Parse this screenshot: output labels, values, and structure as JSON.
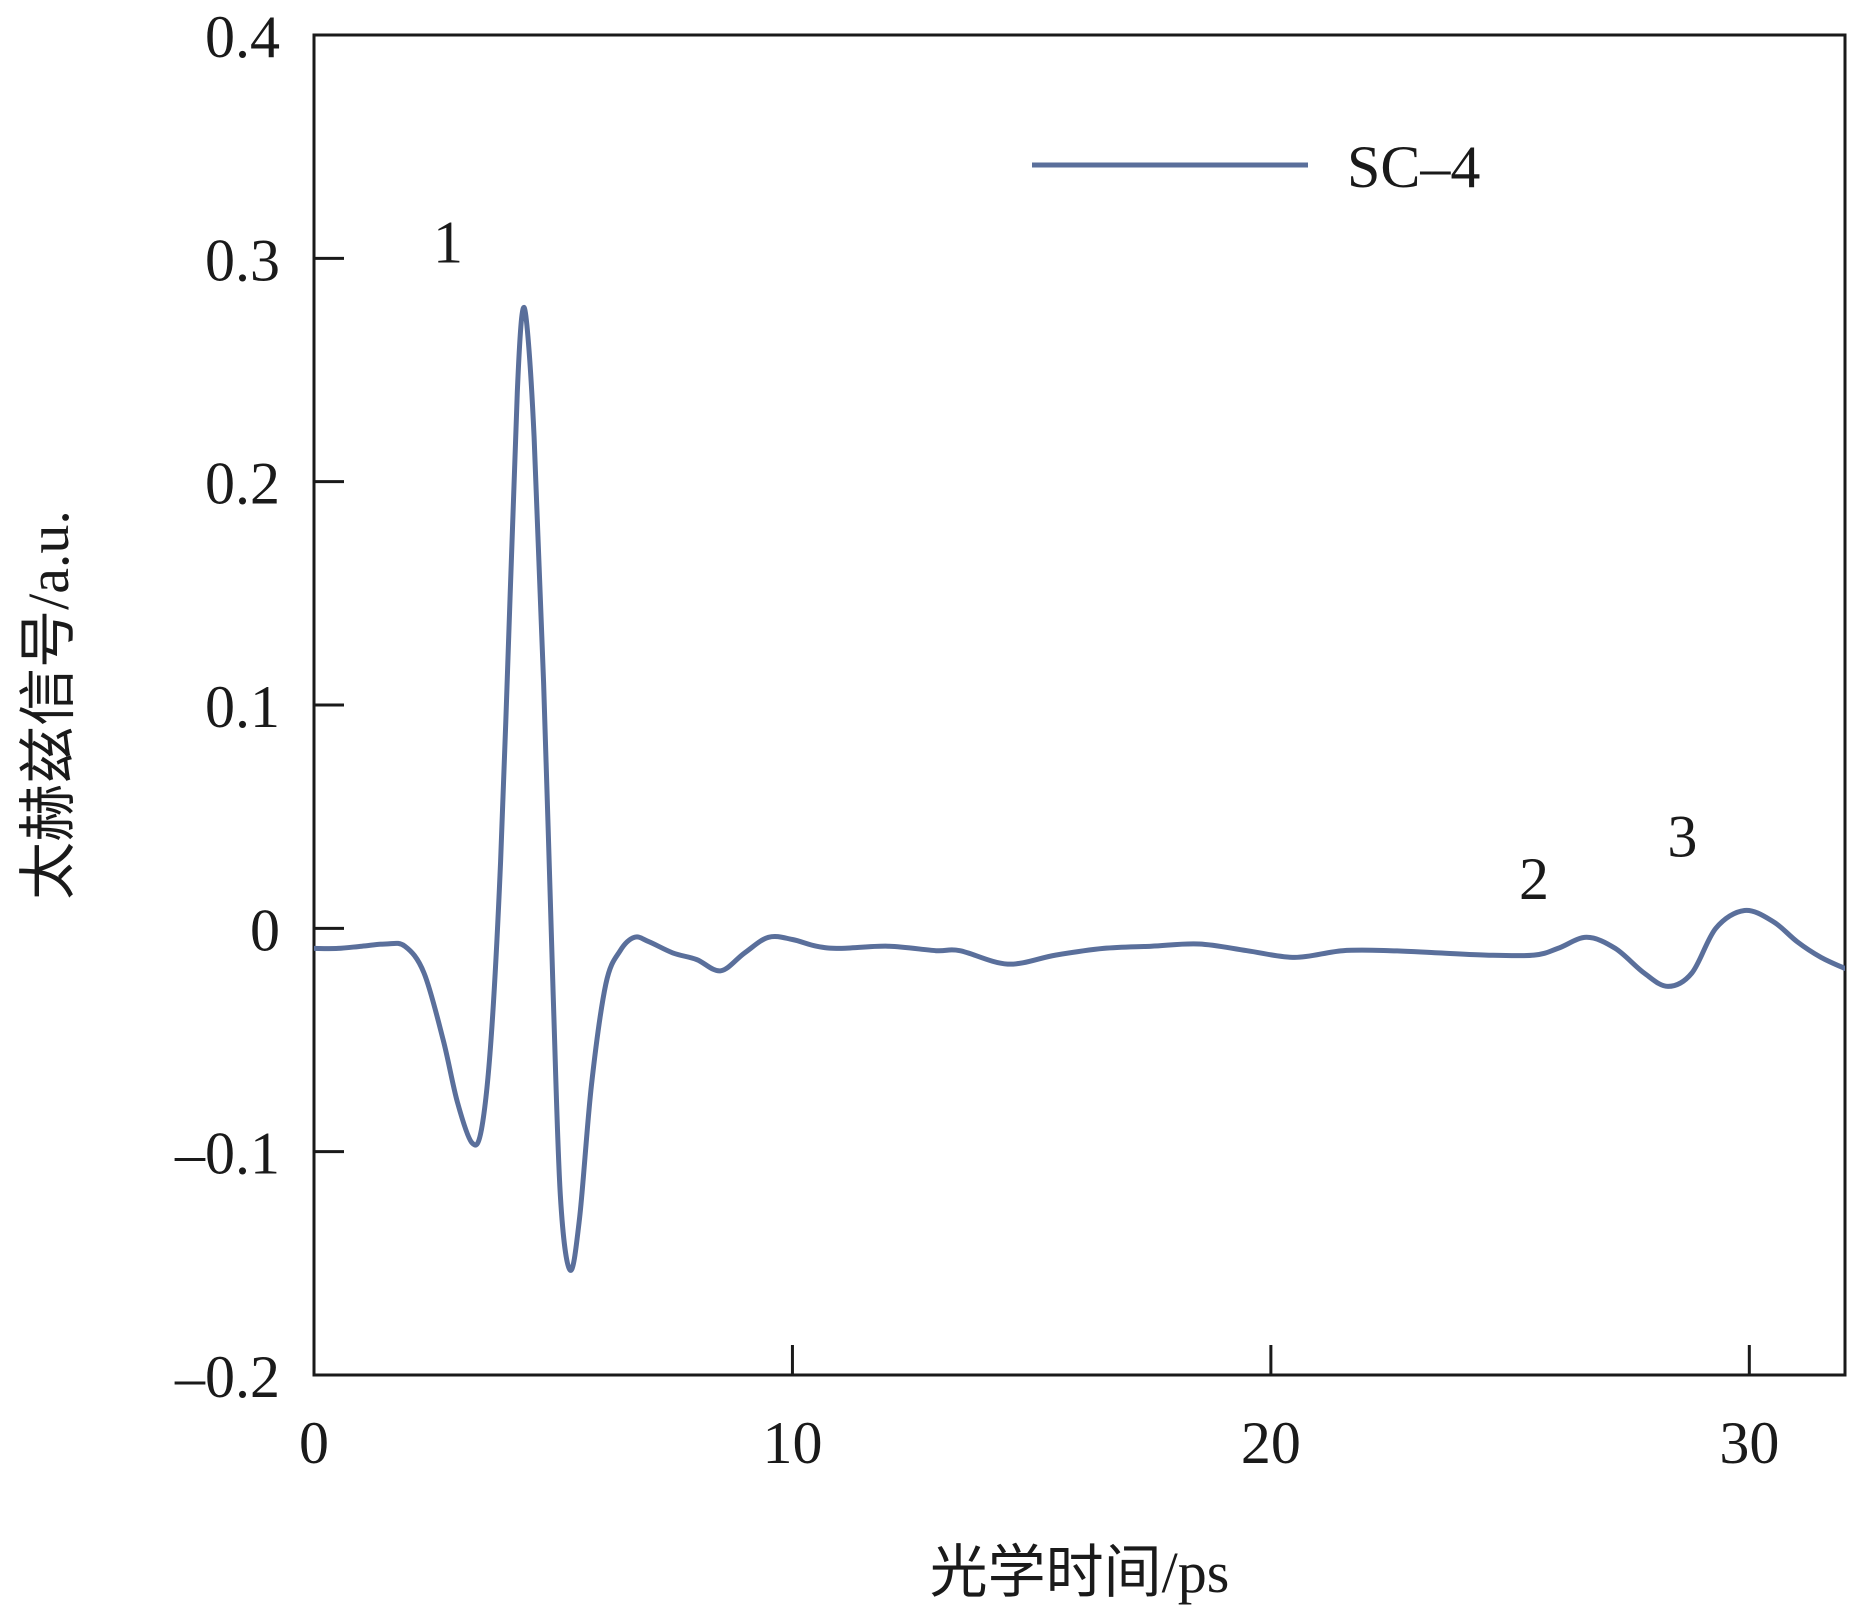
{
  "chart_data": {
    "type": "line",
    "xlabel": "光学时间/ps",
    "ylabel": "太赫兹信号/a.u.",
    "xlim": [
      0,
      32
    ],
    "ylim": [
      -0.2,
      0.4
    ],
    "x_ticks": [
      0,
      10,
      20,
      30
    ],
    "x_tick_labels": [
      "0",
      "10",
      "20",
      "30"
    ],
    "y_ticks": [
      -0.2,
      -0.1,
      0,
      0.1,
      0.2,
      0.3,
      0.4
    ],
    "y_tick_labels": [
      "–0.2",
      "–0.1",
      "0",
      "0.1",
      "0.2",
      "0.3",
      "0.4"
    ],
    "grid": false,
    "legend_position": "top-right",
    "series": [
      {
        "name": "SC–4",
        "color": "#5a6f9b",
        "points": [
          [
            0.0,
            -0.009
          ],
          [
            0.5,
            -0.009
          ],
          [
            1.0,
            -0.008
          ],
          [
            1.5,
            -0.007
          ],
          [
            1.9,
            -0.008
          ],
          [
            2.3,
            -0.02
          ],
          [
            2.7,
            -0.05
          ],
          [
            3.0,
            -0.078
          ],
          [
            3.3,
            -0.096
          ],
          [
            3.5,
            -0.09
          ],
          [
            3.7,
            -0.05
          ],
          [
            3.9,
            0.03
          ],
          [
            4.1,
            0.15
          ],
          [
            4.25,
            0.24
          ],
          [
            4.35,
            0.275
          ],
          [
            4.45,
            0.27
          ],
          [
            4.6,
            0.22
          ],
          [
            4.8,
            0.11
          ],
          [
            5.0,
            -0.03
          ],
          [
            5.15,
            -0.12
          ],
          [
            5.35,
            -0.153
          ],
          [
            5.55,
            -0.13
          ],
          [
            5.8,
            -0.07
          ],
          [
            6.1,
            -0.025
          ],
          [
            6.4,
            -0.01
          ],
          [
            6.7,
            -0.004
          ],
          [
            7.0,
            -0.006
          ],
          [
            7.5,
            -0.011
          ],
          [
            8.0,
            -0.014
          ],
          [
            8.5,
            -0.019
          ],
          [
            9.0,
            -0.011
          ],
          [
            9.5,
            -0.004
          ],
          [
            10.0,
            -0.005
          ],
          [
            10.5,
            -0.008
          ],
          [
            11.0,
            -0.009
          ],
          [
            12.0,
            -0.008
          ],
          [
            13.0,
            -0.01
          ],
          [
            13.5,
            -0.01
          ],
          [
            14.5,
            -0.016
          ],
          [
            15.5,
            -0.012
          ],
          [
            16.5,
            -0.009
          ],
          [
            17.5,
            -0.008
          ],
          [
            18.5,
            -0.007
          ],
          [
            19.5,
            -0.01
          ],
          [
            20.5,
            -0.013
          ],
          [
            21.5,
            -0.01
          ],
          [
            22.5,
            -0.01
          ],
          [
            23.5,
            -0.011
          ],
          [
            24.5,
            -0.012
          ],
          [
            25.5,
            -0.012
          ],
          [
            26.0,
            -0.009
          ],
          [
            26.6,
            -0.004
          ],
          [
            27.2,
            -0.009
          ],
          [
            27.8,
            -0.02
          ],
          [
            28.3,
            -0.026
          ],
          [
            28.8,
            -0.02
          ],
          [
            29.3,
            0.0
          ],
          [
            29.9,
            0.008
          ],
          [
            30.5,
            0.003
          ],
          [
            31.0,
            -0.006
          ],
          [
            31.5,
            -0.013
          ],
          [
            32.0,
            -0.018
          ]
        ]
      }
    ],
    "annotations": [
      {
        "text": "1",
        "x": 2.8,
        "y": 0.308
      },
      {
        "text": "2",
        "x": 25.5,
        "y": 0.023
      },
      {
        "text": "3",
        "x": 28.6,
        "y": 0.042
      }
    ]
  }
}
